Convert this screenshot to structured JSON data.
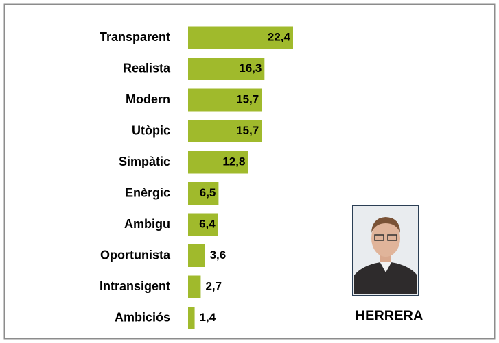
{
  "chart_data": {
    "type": "bar",
    "orientation": "horizontal",
    "categories": [
      "Transparent",
      "Realista",
      "Modern",
      "Utòpic",
      "Simpàtic",
      "Enèrgic",
      "Ambigu",
      "Oportunista",
      "Intransigent",
      "Ambiciós"
    ],
    "values": [
      22.4,
      16.3,
      15.7,
      15.7,
      12.8,
      6.5,
      6.4,
      3.6,
      2.7,
      1.4
    ],
    "value_labels": [
      "22,4",
      "16,3",
      "15,7",
      "15,7",
      "12,8",
      "6,5",
      "6,4",
      "3,6",
      "2,7",
      "1,4"
    ],
    "color": "#a0ba2c",
    "caption": "HERRERA"
  }
}
